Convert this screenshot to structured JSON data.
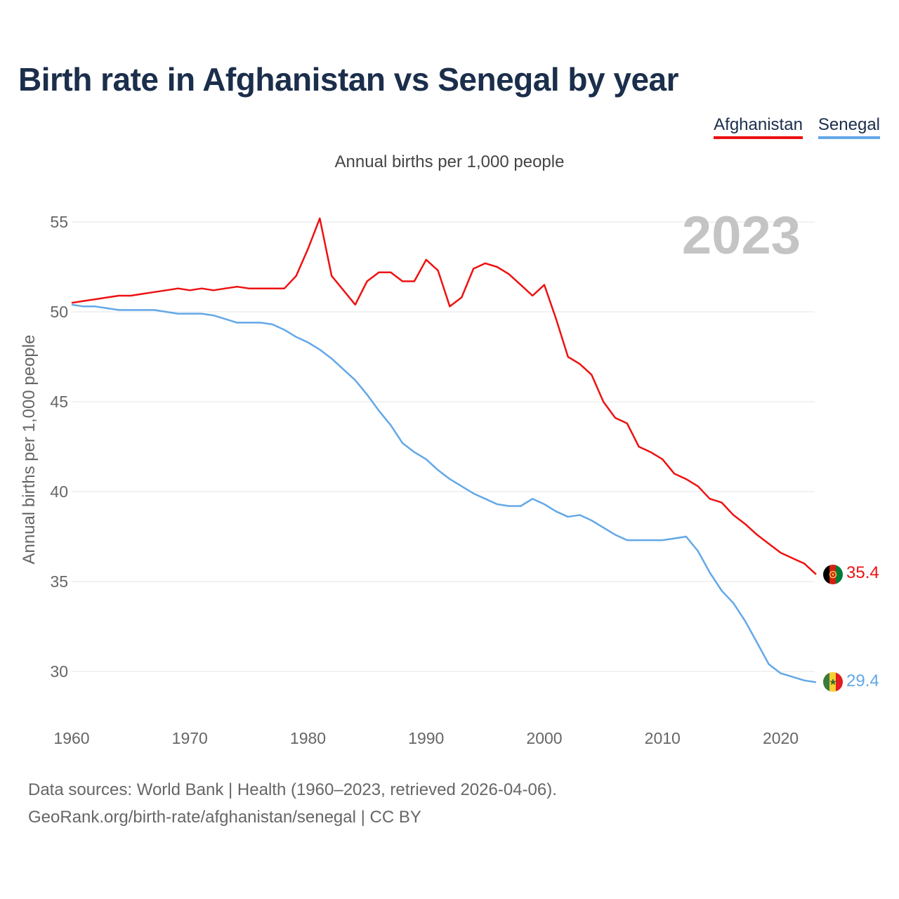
{
  "title": "Birth rate in Afghanistan vs Senegal by year",
  "subtitle": "Annual births per 1,000 people",
  "legend": [
    "Afghanistan",
    "Senegal"
  ],
  "footer": {
    "line1": "Data sources: World Bank | Health (1960–2023, retrieved 2026-04-06).",
    "line2": "GeoRank.org/birth-rate/afghanistan/senegal | CC BY"
  },
  "chart_data": {
    "type": "line",
    "title": "Birth rate in Afghanistan vs Senegal by year",
    "xlabel": "",
    "ylabel": "Annual births per 1,000 people",
    "year_label": "2023",
    "xlim": [
      1960,
      2023
    ],
    "ylim": [
      28,
      55
    ],
    "x_ticks": [
      1960,
      1970,
      1980,
      1990,
      2000,
      2010,
      2020
    ],
    "y_ticks": [
      30,
      35,
      40,
      45,
      50,
      55
    ],
    "grid": true,
    "x": [
      1960,
      1961,
      1962,
      1963,
      1964,
      1965,
      1966,
      1967,
      1968,
      1969,
      1970,
      1971,
      1972,
      1973,
      1974,
      1975,
      1976,
      1977,
      1978,
      1979,
      1980,
      1981,
      1982,
      1983,
      1984,
      1985,
      1986,
      1987,
      1988,
      1989,
      1990,
      1991,
      1992,
      1993,
      1994,
      1995,
      1996,
      1997,
      1998,
      1999,
      2000,
      2001,
      2002,
      2003,
      2004,
      2005,
      2006,
      2007,
      2008,
      2009,
      2010,
      2011,
      2012,
      2013,
      2014,
      2015,
      2016,
      2017,
      2018,
      2019,
      2020,
      2021,
      2022,
      2023
    ],
    "series": [
      {
        "name": "Afghanistan",
        "color": "#ee1111",
        "end_label": "35.4",
        "values": [
          50.5,
          50.6,
          50.7,
          50.8,
          50.9,
          50.9,
          51.0,
          51.1,
          51.2,
          51.3,
          51.2,
          51.3,
          51.2,
          51.3,
          51.4,
          51.3,
          51.3,
          51.3,
          51.3,
          52.0,
          53.5,
          55.2,
          52.0,
          51.2,
          50.4,
          51.7,
          52.2,
          52.2,
          51.7,
          51.7,
          52.9,
          52.3,
          50.3,
          50.8,
          52.4,
          52.7,
          52.5,
          52.1,
          51.5,
          50.9,
          51.5,
          49.6,
          47.5,
          47.1,
          46.5,
          45.0,
          44.1,
          43.8,
          42.5,
          42.2,
          41.8,
          41.0,
          40.7,
          40.3,
          39.6,
          39.4,
          38.7,
          38.2,
          37.6,
          37.1,
          36.6,
          36.3,
          36.0,
          35.4
        ]
      },
      {
        "name": "Senegal",
        "color": "#62a8e8",
        "end_label": "29.4",
        "values": [
          50.4,
          50.3,
          50.3,
          50.2,
          50.1,
          50.1,
          50.1,
          50.1,
          50.0,
          49.9,
          49.9,
          49.9,
          49.8,
          49.6,
          49.4,
          49.4,
          49.4,
          49.3,
          49.0,
          48.6,
          48.3,
          47.9,
          47.4,
          46.8,
          46.2,
          45.4,
          44.5,
          43.7,
          42.7,
          42.2,
          41.8,
          41.2,
          40.7,
          40.3,
          39.9,
          39.6,
          39.3,
          39.2,
          39.2,
          39.6,
          39.3,
          38.9,
          38.6,
          38.7,
          38.4,
          38.0,
          37.6,
          37.3,
          37.3,
          37.3,
          37.3,
          37.4,
          37.5,
          36.7,
          35.5,
          34.5,
          33.8,
          32.8,
          31.6,
          30.4,
          29.9,
          29.7,
          29.5,
          29.4
        ]
      }
    ]
  }
}
